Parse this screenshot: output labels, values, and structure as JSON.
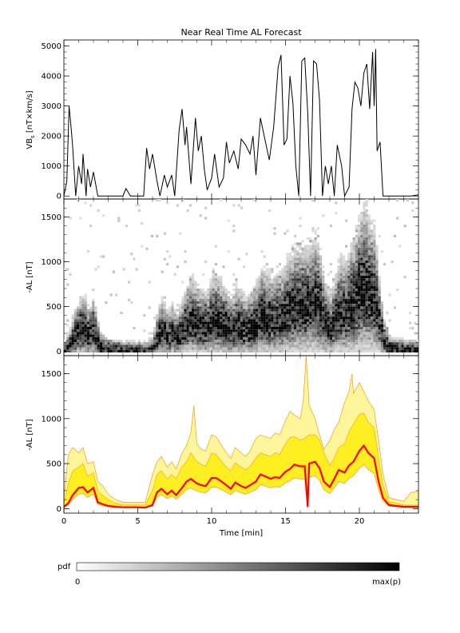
{
  "chart_data": [
    {
      "type": "line",
      "title": "Near Real Time AL Forecast",
      "ylabel": "VB_s [nT×km/s]",
      "ylabel_main": "VB",
      "ylabel_sub": "s",
      "ylabel_rest": " [nT×km/s]",
      "xlim": [
        0,
        24
      ],
      "ylim": [
        -100,
        5200
      ],
      "yticks": [
        0,
        1000,
        2000,
        3000,
        4000,
        5000
      ],
      "series": [
        {
          "color": "#000000",
          "x": [
            0,
            0.2,
            0.35,
            0.5,
            0.6,
            0.8,
            1.0,
            1.2,
            1.3,
            1.5,
            1.6,
            1.8,
            2.0,
            2.3,
            2.5,
            3.0,
            3.5,
            4.0,
            4.2,
            4.5,
            5.0,
            5.4,
            5.6,
            5.8,
            6.0,
            6.3,
            6.5,
            6.8,
            7.0,
            7.3,
            7.5,
            7.8,
            8.0,
            8.2,
            8.3,
            8.6,
            8.9,
            9.1,
            9.3,
            9.5,
            9.7,
            10.0,
            10.2,
            10.5,
            10.8,
            11.0,
            11.2,
            11.5,
            11.8,
            12.0,
            12.3,
            12.6,
            12.8,
            13.0,
            13.3,
            13.6,
            13.9,
            14.2,
            14.5,
            14.7,
            14.9,
            15.1,
            15.3,
            15.5,
            15.7,
            15.9,
            16.1,
            16.3,
            16.5,
            16.7,
            16.9,
            17.1,
            17.3,
            17.5,
            17.7,
            17.9,
            18.1,
            18.3,
            18.5,
            18.8,
            19.0,
            19.3,
            19.5,
            19.7,
            19.9,
            20.1,
            20.3,
            20.5,
            20.7,
            20.9,
            21.0,
            21.1,
            21.2,
            21.4,
            21.6,
            22,
            23,
            23.5,
            24
          ],
          "y": [
            0,
            500,
            3000,
            2200,
            1600,
            0,
            1000,
            400,
            1400,
            0,
            900,
            300,
            800,
            0,
            0,
            0,
            0,
            0,
            250,
            0,
            0,
            0,
            1600,
            900,
            1400,
            500,
            0,
            700,
            300,
            700,
            0,
            2200,
            2900,
            1700,
            2300,
            400,
            2600,
            1500,
            2000,
            900,
            200,
            600,
            1400,
            300,
            600,
            1800,
            1100,
            1500,
            900,
            1900,
            1700,
            1400,
            2000,
            700,
            2600,
            1900,
            1200,
            2300,
            4300,
            4700,
            1700,
            1900,
            4000,
            3100,
            1000,
            0,
            4500,
            4600,
            2800,
            0,
            4500,
            4400,
            3200,
            0,
            1000,
            400,
            1000,
            0,
            1700,
            1000,
            0,
            300,
            2900,
            3800,
            3600,
            3000,
            4100,
            4400,
            2900,
            4800,
            3000,
            4900,
            1500,
            1800,
            0,
            0,
            0,
            0,
            40
          ]
        }
      ],
      "grid": false
    },
    {
      "type": "heatmap",
      "ylabel": "-AL [nT]",
      "xlim": [
        0,
        24
      ],
      "ylim": [
        -50,
        1700
      ],
      "yticks": [
        0,
        500,
        1000,
        1500
      ],
      "description_colors": "grayscale probability density",
      "ridge": {
        "x": [
          0,
          0.3,
          0.6,
          1.0,
          1.3,
          1.6,
          2.0,
          2.3,
          2.6,
          3,
          3.5,
          4,
          4.5,
          5,
          5.5,
          6,
          6.3,
          6.6,
          7,
          7.3,
          7.6,
          8,
          8.3,
          8.6,
          9,
          9.3,
          9.6,
          10,
          10.3,
          10.6,
          11,
          11.3,
          11.6,
          12,
          12.3,
          12.6,
          13,
          13.3,
          13.6,
          14,
          14.3,
          14.6,
          15,
          15.3,
          15.6,
          16,
          16.3,
          16.6,
          17,
          17.3,
          17.6,
          18,
          18.3,
          18.6,
          19,
          19.3,
          19.6,
          20,
          20.3,
          20.6,
          21,
          21.3,
          21.6,
          22,
          22.5,
          23,
          23.5,
          24
        ],
        "y": [
          20,
          60,
          150,
          230,
          240,
          180,
          230,
          70,
          50,
          30,
          20,
          15,
          15,
          15,
          10,
          40,
          180,
          220,
          160,
          200,
          150,
          230,
          300,
          330,
          280,
          260,
          250,
          340,
          340,
          310,
          260,
          220,
          290,
          250,
          230,
          260,
          300,
          380,
          360,
          330,
          350,
          340,
          410,
          440,
          490,
          470,
          470,
          500,
          520,
          450,
          300,
          240,
          330,
          430,
          400,
          480,
          520,
          640,
          700,
          620,
          560,
          300,
          120,
          40,
          30,
          20,
          20,
          20
        ]
      },
      "grid": false
    },
    {
      "type": "area",
      "ylabel": "-AL [nT]",
      "xlabel": "Time [min]",
      "xlim": [
        0,
        24
      ],
      "ylim": [
        -50,
        1700
      ],
      "xticks": [
        0,
        5,
        10,
        15,
        20
      ],
      "yticks": [
        0,
        500,
        1000,
        1500
      ],
      "band_colors": {
        "outer": "#fff59a",
        "inner": "#ffee22",
        "edge": "#f0a020",
        "median": "#ff0000"
      },
      "series": [
        {
          "role": "median",
          "color": "#ff0000",
          "x": [
            0,
            0.3,
            0.6,
            1.0,
            1.3,
            1.6,
            2.0,
            2.3,
            2.6,
            3,
            3.5,
            4,
            4.5,
            5,
            5.5,
            6,
            6.3,
            6.6,
            7,
            7.3,
            7.6,
            8,
            8.3,
            8.6,
            9,
            9.3,
            9.6,
            10,
            10.3,
            10.6,
            11,
            11.3,
            11.6,
            12,
            12.3,
            12.6,
            13,
            13.3,
            13.6,
            14,
            14.3,
            14.6,
            15,
            15.3,
            15.6,
            16,
            16.3,
            16.5,
            16.6,
            17,
            17.3,
            17.6,
            18,
            18.3,
            18.6,
            19,
            19.3,
            19.6,
            20,
            20.3,
            20.6,
            21,
            21.3,
            21.6,
            22,
            22.5,
            23,
            23.5,
            24
          ],
          "y": [
            20,
            60,
            150,
            230,
            240,
            180,
            230,
            70,
            50,
            30,
            20,
            15,
            15,
            15,
            10,
            40,
            180,
            220,
            160,
            200,
            150,
            230,
            300,
            330,
            280,
            260,
            250,
            340,
            340,
            310,
            260,
            220,
            290,
            250,
            230,
            260,
            300,
            380,
            360,
            330,
            350,
            340,
            410,
            440,
            490,
            470,
            470,
            20,
            500,
            520,
            450,
            300,
            240,
            330,
            430,
            400,
            480,
            520,
            640,
            700,
            620,
            560,
            300,
            120,
            40,
            30,
            20,
            20,
            20
          ]
        },
        {
          "role": "inner-upper",
          "x": [
            0,
            0.3,
            0.6,
            1.0,
            1.3,
            1.6,
            2.0,
            2.3,
            2.6,
            3,
            3.5,
            4,
            4.5,
            5,
            5.5,
            6,
            6.3,
            6.6,
            7,
            7.3,
            7.6,
            8,
            8.3,
            8.6,
            9,
            9.3,
            9.6,
            10,
            10.3,
            10.6,
            11,
            11.3,
            11.6,
            12,
            12.3,
            12.6,
            13,
            13.3,
            13.6,
            14,
            14.3,
            14.6,
            15,
            15.3,
            15.6,
            16,
            16.3,
            16.6,
            17,
            17.3,
            17.6,
            18,
            18.3,
            18.6,
            19,
            19.3,
            19.6,
            20,
            20.3,
            20.6,
            21,
            21.3,
            21.6,
            22,
            22.5,
            23,
            23.5,
            24
          ],
          "y": [
            60,
            280,
            420,
            460,
            500,
            360,
            400,
            200,
            150,
            100,
            60,
            40,
            40,
            40,
            40,
            200,
            380,
            420,
            330,
            380,
            330,
            470,
            520,
            620,
            520,
            490,
            470,
            620,
            600,
            540,
            460,
            420,
            510,
            460,
            430,
            470,
            560,
            620,
            600,
            580,
            620,
            600,
            720,
            790,
            800,
            760,
            780,
            820,
            820,
            760,
            620,
            480,
            560,
            680,
            720,
            860,
            940,
            1050,
            1060,
            960,
            900,
            560,
            260,
            80,
            60,
            40,
            40,
            40
          ]
        },
        {
          "role": "outer-upper",
          "x": [
            0,
            0.3,
            0.6,
            1.0,
            1.3,
            1.6,
            2.0,
            2.3,
            2.6,
            3,
            3.5,
            4,
            4.5,
            5,
            5.5,
            6,
            6.3,
            6.6,
            7,
            7.3,
            7.6,
            8,
            8.3,
            8.6,
            8.8,
            9,
            9.3,
            9.6,
            10,
            10.3,
            10.6,
            11,
            11.3,
            11.6,
            12,
            12.3,
            12.6,
            13,
            13.3,
            13.6,
            14,
            14.3,
            14.6,
            15,
            15.3,
            15.6,
            16,
            16.2,
            16.4,
            16.6,
            17,
            17.3,
            17.6,
            18,
            18.3,
            18.6,
            19,
            19.3,
            19.5,
            19.6,
            20,
            20.3,
            20.6,
            21,
            21.3,
            21.6,
            22,
            22.5,
            23,
            23.5,
            24
          ],
          "y": [
            120,
            600,
            680,
            620,
            680,
            500,
            520,
            300,
            260,
            160,
            100,
            70,
            70,
            70,
            70,
            380,
            520,
            580,
            460,
            520,
            440,
            620,
            700,
            850,
            1150,
            720,
            660,
            640,
            820,
            800,
            720,
            620,
            560,
            680,
            620,
            580,
            640,
            780,
            820,
            800,
            780,
            840,
            820,
            980,
            1080,
            1040,
            1000,
            1200,
            1700,
            1150,
            1000,
            820,
            660,
            760,
            880,
            960,
            1180,
            1300,
            1500,
            1280,
            1400,
            1300,
            1200,
            1100,
            760,
            380,
            120,
            100,
            80,
            180,
            190
          ]
        }
      ],
      "grid": false
    }
  ],
  "colorbar": {
    "label": "pdf",
    "min_label": "0",
    "max_label": "max(p)"
  }
}
